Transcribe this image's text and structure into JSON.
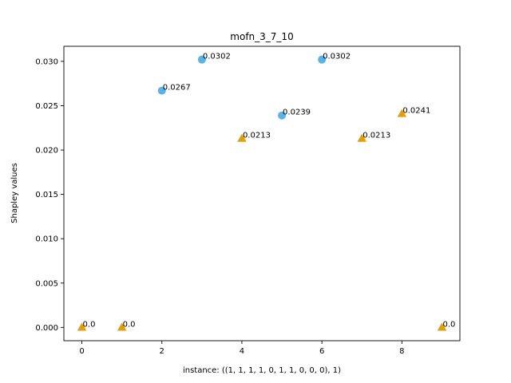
{
  "chart_data": {
    "type": "scatter",
    "title": "mofn_3_7_10",
    "xlabel": "instance: ((1, 1, 1, 1, 0, 1, 1, 0, 0, 0), 1)",
    "ylabel": "Shapley values",
    "xlim": [
      -0.45,
      9.45
    ],
    "ylim": [
      -0.0015,
      0.0317
    ],
    "xticks": [
      0,
      2,
      4,
      6,
      8
    ],
    "xtick_labels": [
      "0",
      "2",
      "4",
      "6",
      "8"
    ],
    "yticks": [
      0.0,
      0.005,
      0.01,
      0.015,
      0.02,
      0.025,
      0.03
    ],
    "ytick_labels": [
      "0.000",
      "0.005",
      "0.010",
      "0.015",
      "0.020",
      "0.025",
      "0.030"
    ],
    "grid": false,
    "legend": "none",
    "series": [
      {
        "marker": "circle",
        "color": "#56b4e9",
        "x": [
          2,
          3,
          5,
          6
        ],
        "y": [
          0.0267,
          0.0302,
          0.0239,
          0.0302
        ],
        "labels": [
          "0.0267",
          "0.0302",
          "0.0239",
          "0.0302"
        ]
      },
      {
        "marker": "triangle",
        "color": "#e69f00",
        "x": [
          0,
          1,
          4,
          7,
          8,
          9
        ],
        "y": [
          0.0,
          0.0,
          0.0213,
          0.0213,
          0.0241,
          0.0
        ],
        "labels": [
          "0.0",
          "0.0",
          "0.0213",
          "0.0213",
          "0.0241",
          "0.0"
        ]
      }
    ]
  }
}
